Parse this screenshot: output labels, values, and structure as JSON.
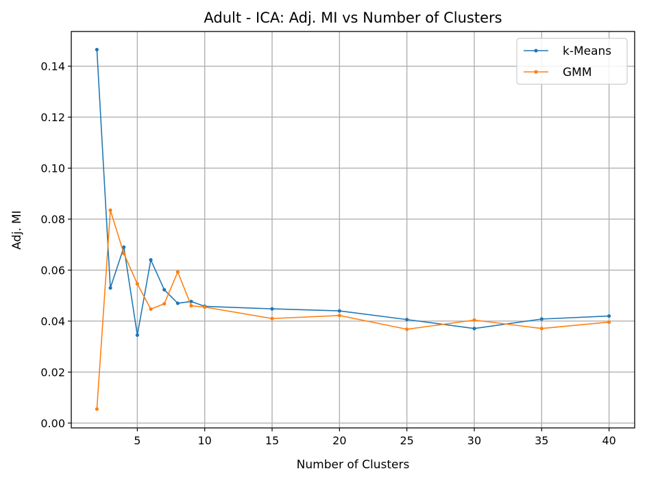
{
  "chart_data": {
    "type": "line",
    "title": "Adult - ICA: Adj. MI vs Number of Clusters",
    "xlabel": "Number of Clusters",
    "ylabel": "Adj. MI",
    "xlim": [
      0.1,
      41.9
    ],
    "ylim": [
      -0.0019,
      0.1536
    ],
    "xticks": [
      5,
      10,
      15,
      20,
      25,
      30,
      35,
      40
    ],
    "xtick_labels": [
      "5",
      "10",
      "15",
      "20",
      "25",
      "30",
      "35",
      "40"
    ],
    "yticks": [
      0.0,
      0.02,
      0.04,
      0.06,
      0.08,
      0.1,
      0.12,
      0.14
    ],
    "ytick_labels": [
      "0.00",
      "0.02",
      "0.04",
      "0.06",
      "0.08",
      "0.10",
      "0.12",
      "0.14"
    ],
    "grid": true,
    "legend_position": "top-right",
    "x": [
      2,
      3,
      4,
      5,
      6,
      7,
      8,
      9,
      10,
      15,
      20,
      25,
      30,
      35,
      40
    ],
    "series": [
      {
        "name": "k-Means",
        "color": "#1f77b4",
        "values": [
          0.1465,
          0.053,
          0.069,
          0.0345,
          0.064,
          0.0523,
          0.047,
          0.0477,
          0.0458,
          0.0448,
          0.044,
          0.0406,
          0.0371,
          0.0408,
          0.042
        ]
      },
      {
        "name": "GMM",
        "color": "#ff7f0e",
        "values": [
          0.0055,
          0.0835,
          0.0665,
          0.0546,
          0.0447,
          0.0468,
          0.0593,
          0.046,
          0.0455,
          0.041,
          0.0422,
          0.0368,
          0.0404,
          0.0371,
          0.0396
        ]
      }
    ]
  }
}
